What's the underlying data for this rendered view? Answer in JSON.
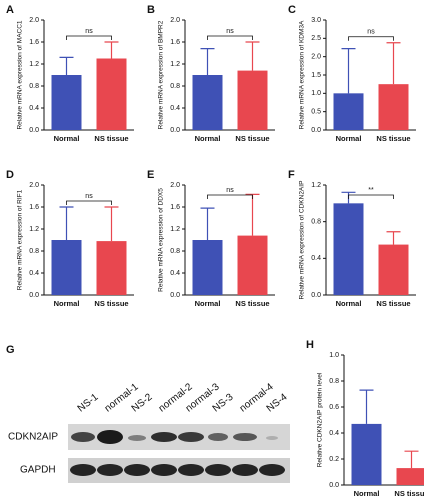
{
  "chart_data": [
    {
      "type": "bar",
      "label": "A",
      "ylabel": "Relative mRNA expression of MACC1",
      "categories": [
        "Normal",
        "NS tissue"
      ],
      "values": [
        1.0,
        1.3
      ],
      "errors": [
        0.32,
        0.3
      ],
      "colors": [
        "#3f51b5",
        "#e8474f"
      ],
      "ylim": [
        0,
        2.0
      ],
      "yticks": [
        {
          "value": 0,
          "label": "0.0"
        },
        0.4,
        0.8,
        1.2,
        1.6,
        {
          "value": 2,
          "label": "2.0"
        }
      ],
      "significance": "ns"
    },
    {
      "type": "bar",
      "label": "B",
      "ylabel": "Relative mRNA expression of BMPR2",
      "categories": [
        "Normal",
        "NS tissue"
      ],
      "values": [
        1.0,
        1.08
      ],
      "errors": [
        0.48,
        0.52
      ],
      "colors": [
        "#3f51b5",
        "#e8474f"
      ],
      "ylim": [
        0,
        2.0
      ],
      "yticks": [
        {
          "value": 0,
          "label": "0.0"
        },
        0.4,
        0.8,
        1.2,
        1.6,
        {
          "value": 2,
          "label": "2.0"
        }
      ],
      "significance": "ns"
    },
    {
      "type": "bar",
      "label": "C",
      "ylabel": "Relative mRNA expression of KDM3A",
      "categories": [
        "Normal",
        "NS tissue"
      ],
      "values": [
        1.0,
        1.25
      ],
      "errors": [
        1.22,
        1.13
      ],
      "colors": [
        "#3f51b5",
        "#e8474f"
      ],
      "ylim": [
        0,
        3.0
      ],
      "yticks": [
        {
          "value": 0,
          "label": "0.0"
        },
        0.5,
        {
          "value": 1,
          "label": "1.0"
        },
        1.5,
        {
          "value": 2,
          "label": "2.0"
        },
        2.5,
        {
          "value": 3,
          "label": "3.0"
        }
      ],
      "significance": "ns"
    },
    {
      "type": "bar",
      "label": "D",
      "ylabel": "Relative mRNA expression of RIF1",
      "categories": [
        "Normal",
        "NS tissue"
      ],
      "values": [
        1.0,
        0.98
      ],
      "errors": [
        0.6,
        0.62
      ],
      "colors": [
        "#3f51b5",
        "#e8474f"
      ],
      "ylim": [
        0,
        2.0
      ],
      "yticks": [
        {
          "value": 0,
          "label": "0.0"
        },
        0.4,
        0.8,
        1.2,
        1.6,
        {
          "value": 2,
          "label": "2.0"
        }
      ],
      "significance": "ns"
    },
    {
      "type": "bar",
      "label": "E",
      "ylabel": "Relative mRNA expression of DDX5",
      "categories": [
        "Normal",
        "NS tissue"
      ],
      "values": [
        1.0,
        1.08
      ],
      "errors": [
        0.58,
        0.75
      ],
      "colors": [
        "#3f51b5",
        "#e8474f"
      ],
      "ylim": [
        0,
        2.0
      ],
      "yticks": [
        {
          "value": 0,
          "label": "0.0"
        },
        0.4,
        0.8,
        1.2,
        1.6,
        {
          "value": 2,
          "label": "2.0"
        }
      ],
      "significance": "ns"
    },
    {
      "type": "bar",
      "label": "F",
      "ylabel": "Relative mRNA expression of CDKN2AIP",
      "categories": [
        "Normal",
        "NS tissue"
      ],
      "values": [
        1.0,
        0.55
      ],
      "errors": [
        0.12,
        0.14
      ],
      "colors": [
        "#3f51b5",
        "#e8474f"
      ],
      "ylim": [
        0,
        1.2
      ],
      "yticks": [
        {
          "value": 0,
          "label": "0.0"
        },
        0.4,
        0.8,
        1.2
      ],
      "significance": "**"
    },
    {
      "type": "bar",
      "label": "H",
      "ylabel": "Relative CDKN2AIP protein level",
      "categories": [
        "Normal",
        "NS tissue"
      ],
      "values": [
        0.47,
        0.13
      ],
      "errors": [
        0.26,
        0.13
      ],
      "colors": [
        "#3f51b5",
        "#e8474f"
      ],
      "ylim": [
        0,
        1.0
      ],
      "yticks": [
        {
          "value": 0,
          "label": "0.0"
        },
        0.2,
        0.4,
        0.6,
        0.8,
        {
          "value": 1,
          "label": "1.0"
        }
      ]
    }
  ],
  "blot": {
    "label": "G",
    "lanes": [
      "NS-1",
      "normal-1",
      "NS-2",
      "normal-2",
      "normal-3",
      "NS-3",
      "normal-4",
      "NS-4"
    ],
    "rows": [
      "CDKN2AIP",
      "GAPDH"
    ]
  }
}
